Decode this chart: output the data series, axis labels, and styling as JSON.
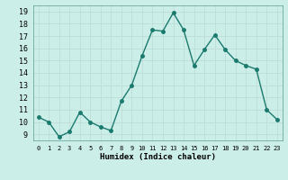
{
  "x": [
    0,
    1,
    2,
    3,
    4,
    5,
    6,
    7,
    8,
    9,
    10,
    11,
    12,
    13,
    14,
    15,
    16,
    17,
    18,
    19,
    20,
    21,
    22,
    23
  ],
  "y": [
    10.4,
    10.0,
    8.8,
    9.2,
    10.8,
    10.0,
    9.6,
    9.3,
    11.7,
    13.0,
    15.4,
    17.5,
    17.4,
    18.9,
    17.5,
    14.6,
    15.9,
    17.1,
    15.9,
    15.0,
    14.6,
    14.3,
    11.0,
    10.2
  ],
  "xlabel": "Humidex (Indice chaleur)",
  "ylim": [
    8.5,
    19.5
  ],
  "xlim": [
    -0.5,
    23.5
  ],
  "yticks": [
    9,
    10,
    11,
    12,
    13,
    14,
    15,
    16,
    17,
    18,
    19
  ],
  "xticks": [
    0,
    1,
    2,
    3,
    4,
    5,
    6,
    7,
    8,
    9,
    10,
    11,
    12,
    13,
    14,
    15,
    16,
    17,
    18,
    19,
    20,
    21,
    22,
    23
  ],
  "line_color": "#1a7a6e",
  "bg_color": "#cceee8",
  "grid_color": "#c0ddd8",
  "marker": "o",
  "marker_size": 2.5,
  "line_width": 1.0
}
